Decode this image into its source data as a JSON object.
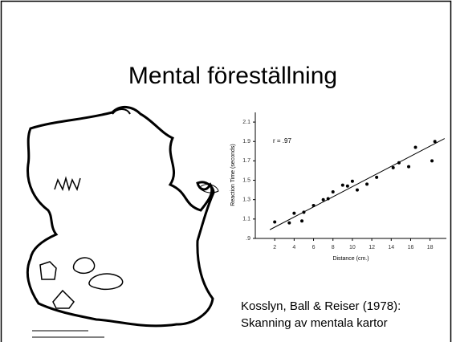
{
  "slide": {
    "title": "Mental föreställning",
    "caption": [
      "Kosslyn, Ball & Reiser (1978):",
      "Skanning av mentala kartor"
    ]
  },
  "chart_data": {
    "type": "scatter",
    "x_label": "Distance (cm.)",
    "y_label": "Reaction Time (seconds)",
    "annotation": "r = .97",
    "x": [
      2,
      3.5,
      4,
      4.8,
      5,
      6,
      7,
      7.5,
      8,
      9,
      9.5,
      10,
      10.5,
      11.5,
      12.5,
      14.2,
      14.8,
      15.8,
      16.5,
      18.2,
      18.5
    ],
    "values": [
      1.07,
      1.06,
      1.16,
      1.08,
      1.17,
      1.24,
      1.3,
      1.31,
      1.38,
      1.45,
      1.44,
      1.49,
      1.4,
      1.46,
      1.53,
      1.63,
      1.68,
      1.64,
      1.84,
      1.7,
      1.9
    ],
    "color": "#000000",
    "fit_line": {
      "x": [
        1.5,
        19.5
      ],
      "values": [
        0.99,
        1.93
      ]
    },
    "xlim": [
      0,
      19.6
    ],
    "ylim": [
      0.9,
      2.2
    ],
    "xticks": [
      2,
      4,
      6,
      8,
      10,
      12,
      14,
      16,
      18
    ],
    "yticks": [
      {
        "value": 0.9,
        "label": ".9"
      },
      1.1,
      1.3,
      1.5,
      1.7,
      1.9,
      2.1
    ]
  }
}
